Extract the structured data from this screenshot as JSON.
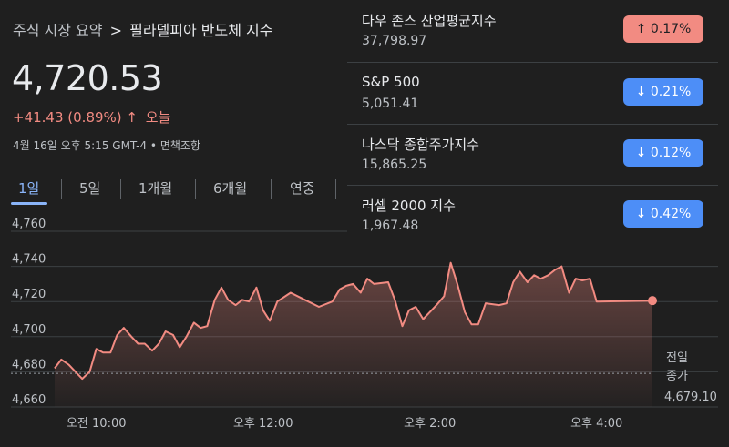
{
  "breadcrumb": {
    "parent": "주식 시장 요약",
    "separator": ">",
    "current": "필라델피아 반도체 지수"
  },
  "quote": {
    "price": "4,720.53",
    "change": "+41.43 (0.89%)",
    "arrow": "↑",
    "period": "오늘",
    "meta": "4월 16일 오후 5:15 GMT-4 • 면책조항"
  },
  "tabs": [
    "1일",
    "5일",
    "1개월",
    "6개월",
    "연중"
  ],
  "indices": [
    {
      "name": "다우 존스 산업평균지수",
      "value": "37,798.97",
      "change": "↑ 0.17%",
      "direction": "up"
    },
    {
      "name": "S&P 500",
      "value": "5,051.41",
      "change": "↓ 0.21%",
      "direction": "down"
    },
    {
      "name": "나스닥 종합주가지수",
      "value": "15,865.25",
      "change": "↓ 0.12%",
      "direction": "down"
    },
    {
      "name": "러셀 2000 지수",
      "value": "1,967.48",
      "change": "↓ 0.42%",
      "direction": "down"
    }
  ],
  "colors": {
    "line": "#f28b82",
    "up_badge": "#f28b82",
    "down_badge": "#4d8ef7",
    "accent": "#8ab4f8"
  },
  "chart_data": {
    "type": "line",
    "yticks": [
      "4,760",
      "4,740",
      "4,720",
      "4,700",
      "4,680",
      "4,660"
    ],
    "ylim": [
      4660,
      4760
    ],
    "xticks": [
      {
        "label": "오전 10:00",
        "t": 10.0
      },
      {
        "label": "오후 12:00",
        "t": 12.0
      },
      {
        "label": "오후 2:00",
        "t": 14.0
      },
      {
        "label": "오후 4:00",
        "t": 16.0
      }
    ],
    "xlim": [
      9.5,
      16.67
    ],
    "previous_close": 4679.1,
    "previous_close_label": [
      "전일",
      "종가",
      "4,679.10"
    ],
    "series": [
      {
        "t": 9.5,
        "v": 4682
      },
      {
        "t": 9.58,
        "v": 4687
      },
      {
        "t": 9.67,
        "v": 4684
      },
      {
        "t": 9.75,
        "v": 4680
      },
      {
        "t": 9.83,
        "v": 4676
      },
      {
        "t": 9.92,
        "v": 4680
      },
      {
        "t": 10.0,
        "v": 4693
      },
      {
        "t": 10.08,
        "v": 4691
      },
      {
        "t": 10.17,
        "v": 4691
      },
      {
        "t": 10.25,
        "v": 4701
      },
      {
        "t": 10.33,
        "v": 4705
      },
      {
        "t": 10.42,
        "v": 4700
      },
      {
        "t": 10.5,
        "v": 4696
      },
      {
        "t": 10.58,
        "v": 4696
      },
      {
        "t": 10.67,
        "v": 4692
      },
      {
        "t": 10.75,
        "v": 4696
      },
      {
        "t": 10.83,
        "v": 4703
      },
      {
        "t": 10.92,
        "v": 4701
      },
      {
        "t": 11.0,
        "v": 4694
      },
      {
        "t": 11.08,
        "v": 4700
      },
      {
        "t": 11.17,
        "v": 4708
      },
      {
        "t": 11.25,
        "v": 4705
      },
      {
        "t": 11.33,
        "v": 4706
      },
      {
        "t": 11.42,
        "v": 4721
      },
      {
        "t": 11.5,
        "v": 4728
      },
      {
        "t": 11.58,
        "v": 4721
      },
      {
        "t": 11.67,
        "v": 4718
      },
      {
        "t": 11.75,
        "v": 4721
      },
      {
        "t": 11.83,
        "v": 4720
      },
      {
        "t": 11.92,
        "v": 4728
      },
      {
        "t": 12.0,
        "v": 4715
      },
      {
        "t": 12.08,
        "v": 4709
      },
      {
        "t": 12.17,
        "v": 4720
      },
      {
        "t": 12.33,
        "v": 4725
      },
      {
        "t": 12.5,
        "v": 4721
      },
      {
        "t": 12.67,
        "v": 4717
      },
      {
        "t": 12.83,
        "v": 4720
      },
      {
        "t": 12.92,
        "v": 4727
      },
      {
        "t": 13.0,
        "v": 4729
      },
      {
        "t": 13.08,
        "v": 4730
      },
      {
        "t": 13.17,
        "v": 4725
      },
      {
        "t": 13.25,
        "v": 4733
      },
      {
        "t": 13.33,
        "v": 4730
      },
      {
        "t": 13.5,
        "v": 4731
      },
      {
        "t": 13.58,
        "v": 4721
      },
      {
        "t": 13.67,
        "v": 4706
      },
      {
        "t": 13.75,
        "v": 4715
      },
      {
        "t": 13.83,
        "v": 4717
      },
      {
        "t": 13.92,
        "v": 4710
      },
      {
        "t": 14.0,
        "v": 4714
      },
      {
        "t": 14.08,
        "v": 4718
      },
      {
        "t": 14.17,
        "v": 4723
      },
      {
        "t": 14.25,
        "v": 4742
      },
      {
        "t": 14.33,
        "v": 4730
      },
      {
        "t": 14.42,
        "v": 4714
      },
      {
        "t": 14.5,
        "v": 4707
      },
      {
        "t": 14.58,
        "v": 4707
      },
      {
        "t": 14.67,
        "v": 4719
      },
      {
        "t": 14.83,
        "v": 4718
      },
      {
        "t": 14.92,
        "v": 4719
      },
      {
        "t": 15.0,
        "v": 4731
      },
      {
        "t": 15.08,
        "v": 4737
      },
      {
        "t": 15.17,
        "v": 4731
      },
      {
        "t": 15.25,
        "v": 4735
      },
      {
        "t": 15.33,
        "v": 4733
      },
      {
        "t": 15.42,
        "v": 4735
      },
      {
        "t": 15.5,
        "v": 4738
      },
      {
        "t": 15.58,
        "v": 4740
      },
      {
        "t": 15.67,
        "v": 4725
      },
      {
        "t": 15.75,
        "v": 4733
      },
      {
        "t": 15.83,
        "v": 4732
      },
      {
        "t": 15.92,
        "v": 4733
      },
      {
        "t": 16.0,
        "v": 4720
      },
      {
        "t": 16.67,
        "v": 4720.53
      }
    ]
  }
}
